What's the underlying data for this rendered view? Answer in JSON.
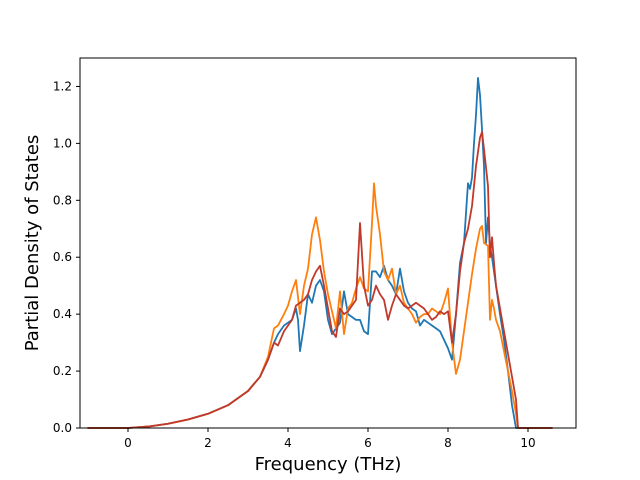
{
  "chart_data": {
    "type": "line",
    "title": "",
    "xlabel": "Frequency (THz)",
    "ylabel": "Partial Density of States",
    "xlim": [
      -1.2,
      11.2
    ],
    "ylim": [
      0.0,
      1.3
    ],
    "xticks": [
      0,
      2,
      4,
      6,
      8,
      10
    ],
    "xtick_labels": [
      "0",
      "2",
      "4",
      "6",
      "8",
      "10"
    ],
    "yticks": [
      0.0,
      0.2,
      0.4,
      0.6,
      0.8,
      1.0,
      1.2
    ],
    "ytick_labels": [
      "0.0",
      "0.2",
      "0.4",
      "0.6",
      "0.8",
      "1.0",
      "1.2"
    ],
    "grid": false,
    "legend": "none",
    "series": [
      {
        "color": "#1f77b4",
        "x": [
          -1.0,
          -0.5,
          0.0,
          0.5,
          1.0,
          1.5,
          2.0,
          2.5,
          3.0,
          3.3,
          3.5,
          3.65,
          3.75,
          3.9,
          4.0,
          4.1,
          4.2,
          4.25,
          4.3,
          4.4,
          4.5,
          4.6,
          4.7,
          4.8,
          4.9,
          5.0,
          5.1,
          5.2,
          5.3,
          5.4,
          5.5,
          5.6,
          5.7,
          5.8,
          5.9,
          6.0,
          6.1,
          6.2,
          6.3,
          6.4,
          6.5,
          6.6,
          6.7,
          6.8,
          6.9,
          7.0,
          7.1,
          7.2,
          7.3,
          7.4,
          7.5,
          7.6,
          7.7,
          7.8,
          7.9,
          8.0,
          8.1,
          8.2,
          8.3,
          8.4,
          8.5,
          8.55,
          8.6,
          8.65,
          8.7,
          8.75,
          8.8,
          8.85,
          8.9,
          8.95,
          9.0,
          9.05,
          9.1,
          9.15,
          9.2,
          9.3,
          9.4,
          9.5,
          9.6,
          9.7,
          9.75,
          9.8,
          10.0,
          10.3,
          10.6
        ],
        "y": [
          0.0,
          0.0,
          0.0,
          0.005,
          0.015,
          0.03,
          0.05,
          0.08,
          0.13,
          0.18,
          0.24,
          0.3,
          0.33,
          0.36,
          0.37,
          0.38,
          0.42,
          0.38,
          0.27,
          0.36,
          0.47,
          0.44,
          0.5,
          0.52,
          0.48,
          0.38,
          0.33,
          0.35,
          0.37,
          0.48,
          0.4,
          0.39,
          0.38,
          0.38,
          0.34,
          0.33,
          0.55,
          0.55,
          0.53,
          0.57,
          0.52,
          0.5,
          0.47,
          0.56,
          0.48,
          0.44,
          0.42,
          0.41,
          0.36,
          0.38,
          0.37,
          0.36,
          0.35,
          0.34,
          0.31,
          0.28,
          0.24,
          0.4,
          0.58,
          0.65,
          0.86,
          0.84,
          0.88,
          1.0,
          1.1,
          1.23,
          1.17,
          1.05,
          0.92,
          0.65,
          0.74,
          0.64,
          0.6,
          0.55,
          0.5,
          0.4,
          0.31,
          0.2,
          0.08,
          0.0,
          0.0,
          0.0,
          0.0,
          0.0,
          0.0
        ]
      },
      {
        "color": "#ff7f0e",
        "x": [
          -1.0,
          -0.5,
          0.0,
          0.5,
          1.0,
          1.5,
          2.0,
          2.5,
          3.0,
          3.3,
          3.5,
          3.65,
          3.75,
          3.9,
          4.0,
          4.1,
          4.2,
          4.3,
          4.4,
          4.5,
          4.6,
          4.7,
          4.8,
          4.9,
          5.0,
          5.1,
          5.2,
          5.3,
          5.4,
          5.5,
          5.6,
          5.7,
          5.8,
          5.9,
          6.0,
          6.1,
          6.15,
          6.2,
          6.3,
          6.4,
          6.5,
          6.6,
          6.7,
          6.8,
          6.9,
          7.0,
          7.1,
          7.2,
          7.3,
          7.4,
          7.5,
          7.6,
          7.7,
          7.8,
          7.9,
          8.0,
          8.1,
          8.2,
          8.3,
          8.4,
          8.5,
          8.6,
          8.7,
          8.8,
          8.85,
          8.9,
          9.0,
          9.05,
          9.1,
          9.15,
          9.2,
          9.3,
          9.4,
          9.5,
          9.6,
          9.7,
          9.75,
          9.8,
          10.0,
          10.3,
          10.6
        ],
        "y": [
          0.0,
          0.0,
          0.0,
          0.005,
          0.015,
          0.03,
          0.05,
          0.08,
          0.13,
          0.18,
          0.25,
          0.35,
          0.36,
          0.4,
          0.43,
          0.48,
          0.52,
          0.4,
          0.5,
          0.56,
          0.68,
          0.74,
          0.66,
          0.55,
          0.47,
          0.41,
          0.35,
          0.48,
          0.33,
          0.42,
          0.44,
          0.49,
          0.53,
          0.49,
          0.48,
          0.72,
          0.86,
          0.78,
          0.68,
          0.55,
          0.52,
          0.56,
          0.47,
          0.5,
          0.44,
          0.42,
          0.4,
          0.37,
          0.39,
          0.4,
          0.4,
          0.42,
          0.41,
          0.4,
          0.44,
          0.49,
          0.3,
          0.19,
          0.24,
          0.34,
          0.44,
          0.54,
          0.63,
          0.7,
          0.71,
          0.65,
          0.64,
          0.38,
          0.45,
          0.42,
          0.38,
          0.34,
          0.27,
          0.2,
          0.13,
          0.05,
          0.0,
          0.0,
          0.0,
          0.0,
          0.0
        ]
      },
      {
        "color": "#c0392b",
        "x": [
          -1.0,
          -0.5,
          0.0,
          0.5,
          1.0,
          1.5,
          2.0,
          2.5,
          3.0,
          3.3,
          3.5,
          3.65,
          3.75,
          3.9,
          4.0,
          4.1,
          4.2,
          4.3,
          4.4,
          4.5,
          4.6,
          4.7,
          4.8,
          4.9,
          5.0,
          5.1,
          5.2,
          5.3,
          5.4,
          5.5,
          5.6,
          5.7,
          5.8,
          5.9,
          6.0,
          6.1,
          6.2,
          6.3,
          6.4,
          6.5,
          6.6,
          6.7,
          6.8,
          6.9,
          7.0,
          7.1,
          7.2,
          7.3,
          7.4,
          7.5,
          7.6,
          7.7,
          7.8,
          7.9,
          8.0,
          8.1,
          8.2,
          8.3,
          8.4,
          8.5,
          8.6,
          8.7,
          8.8,
          8.85,
          8.9,
          9.0,
          9.05,
          9.1,
          9.15,
          9.2,
          9.3,
          9.4,
          9.5,
          9.6,
          9.7,
          9.75,
          9.8,
          10.0,
          10.3,
          10.6
        ],
        "y": [
          0.0,
          0.0,
          0.0,
          0.005,
          0.015,
          0.03,
          0.05,
          0.08,
          0.13,
          0.18,
          0.24,
          0.3,
          0.29,
          0.34,
          0.36,
          0.38,
          0.43,
          0.44,
          0.45,
          0.47,
          0.52,
          0.55,
          0.57,
          0.5,
          0.42,
          0.34,
          0.32,
          0.42,
          0.4,
          0.41,
          0.43,
          0.45,
          0.72,
          0.5,
          0.43,
          0.45,
          0.5,
          0.47,
          0.45,
          0.38,
          0.43,
          0.47,
          0.45,
          0.43,
          0.42,
          0.43,
          0.44,
          0.43,
          0.42,
          0.4,
          0.38,
          0.39,
          0.41,
          0.4,
          0.41,
          0.3,
          0.4,
          0.55,
          0.65,
          0.7,
          0.78,
          0.92,
          1.02,
          1.04,
          0.98,
          0.85,
          0.6,
          0.67,
          0.58,
          0.5,
          0.42,
          0.34,
          0.26,
          0.18,
          0.1,
          0.0,
          0.0,
          0.0,
          0.0,
          0.0
        ]
      }
    ]
  }
}
